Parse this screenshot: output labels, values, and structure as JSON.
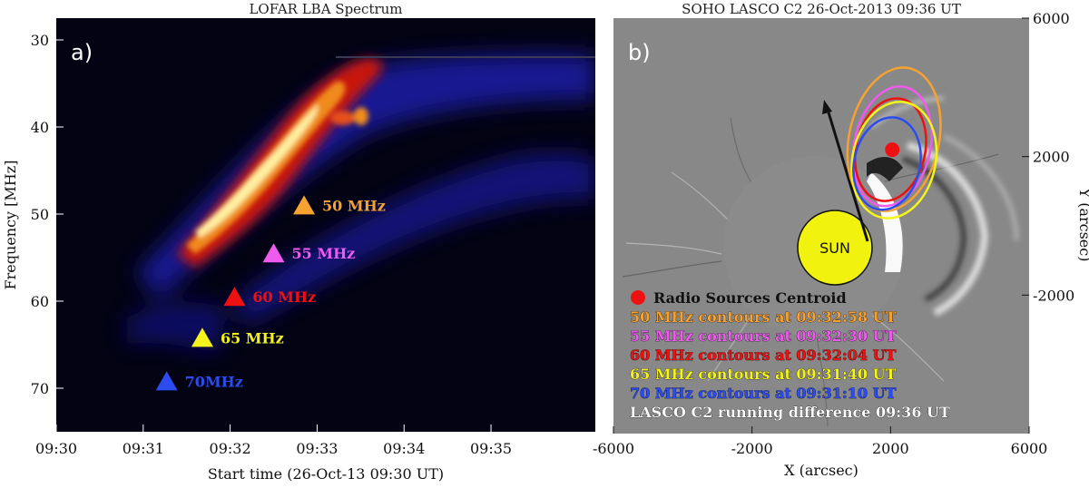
{
  "chart_data": [
    {
      "type": "heatmap",
      "title": "LOFAR LBA Spectrum",
      "panel_label": "a)",
      "xlabel": "Start time (26-Oct-13 09:30 UT)",
      "ylabel": "Frequency [MHz]",
      "x_ticks": [
        "09:30",
        "09:31",
        "09:32",
        "09:33",
        "09:34",
        "09:35"
      ],
      "y_ticks": [
        "30",
        "40",
        "50",
        "60",
        "70"
      ],
      "xlim_minutes": [
        0,
        6.2
      ],
      "ylim_mhz": [
        27.5,
        75
      ],
      "y_inverted": true,
      "markers": [
        {
          "label": "50 MHz",
          "time_min": 2.85,
          "freq_mhz": 49,
          "color": "#f7a230"
        },
        {
          "label": "55 MHz",
          "time_min": 2.5,
          "freq_mhz": 54.5,
          "color": "#ef5bef"
        },
        {
          "label": "60 MHz",
          "time_min": 2.05,
          "freq_mhz": 59.5,
          "color": "#ee1111"
        },
        {
          "label": "65 MHz",
          "time_min": 1.68,
          "freq_mhz": 64.2,
          "color": "#f4f41c"
        },
        {
          "label": "70MHz",
          "time_min": 1.27,
          "freq_mhz": 69.2,
          "color": "#2c4cf0"
        }
      ]
    },
    {
      "type": "scatter",
      "title": "SOHO LASCO C2 26-Oct-2013 09:36 UT",
      "panel_label": "b)",
      "xlabel": "X (arcsec)",
      "ylabel": "Y (arcsec)",
      "x_ticks": [
        "-6000",
        "-2000",
        "2000",
        "6000"
      ],
      "y_ticks": [
        "6000",
        "2000",
        "-2000"
      ],
      "xlim": [
        -6000,
        6000
      ],
      "ylim": [
        -6000,
        6000
      ],
      "sun_label": "SUN",
      "centroid": {
        "x": 2050,
        "y": 2200,
        "color": "#ee1111"
      },
      "legend": [
        {
          "text": "Radio Sources Centroid",
          "color": "#111111",
          "symbol": "dot"
        },
        {
          "text": "50 MHz contours at 09:32:58 UT",
          "color": "#f7a230"
        },
        {
          "text": "55 MHz contours at 09:32:30 UT",
          "color": "#ef5bef"
        },
        {
          "text": "60 MHz contours at 09:32:04 UT",
          "color": "#ee1111"
        },
        {
          "text": "65 MHz contours at 09:31:40 UT",
          "color": "#f4f41c"
        },
        {
          "text": "70 MHz contours at 09:31:10 UT",
          "color": "#2c4cf0"
        },
        {
          "text": "LASCO C2 running difference 09:36 UT",
          "color": "#ffffff"
        }
      ],
      "contours": [
        {
          "freq": "50 MHz",
          "color": "#f7a230",
          "cx": 2100,
          "cy": 2500,
          "rx": 1300,
          "ry": 2100
        },
        {
          "freq": "55 MHz",
          "color": "#ef5bef",
          "cx": 2050,
          "cy": 2300,
          "rx": 1100,
          "ry": 1750
        },
        {
          "freq": "60 MHz",
          "color": "#ee1111",
          "cx": 2000,
          "cy": 2200,
          "rx": 1000,
          "ry": 1500
        },
        {
          "freq": "65 MHz",
          "color": "#f4f41c",
          "cx": 2100,
          "cy": 1900,
          "rx": 1200,
          "ry": 1700
        },
        {
          "freq": "70 MHz",
          "color": "#2c4cf0",
          "cx": 1900,
          "cy": 1800,
          "rx": 950,
          "ry": 1350
        }
      ]
    }
  ]
}
